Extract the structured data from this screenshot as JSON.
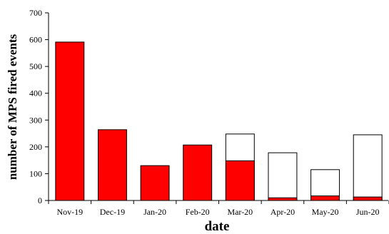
{
  "chart_data": {
    "type": "bar",
    "title": "",
    "xlabel": "date",
    "ylabel": "number of MPS fired events",
    "ylim": [
      0,
      700
    ],
    "yticks": [
      0,
      100,
      200,
      300,
      400,
      500,
      600,
      700
    ],
    "grid": false,
    "categories": [
      "Nov-19",
      "Dec-19",
      "Jan-20",
      "Feb-20",
      "Mar-20",
      "Apr-20",
      "May-20",
      "Jun-20"
    ],
    "series": [
      {
        "values": [
          null,
          null,
          null,
          null,
          248,
          178,
          115,
          245
        ],
        "color": "#ffffff",
        "stroke": "#000000"
      },
      {
        "values": [
          591,
          264,
          130,
          207,
          148,
          10,
          17,
          13
        ],
        "color": "#ff0000",
        "stroke": "#000000"
      }
    ]
  }
}
